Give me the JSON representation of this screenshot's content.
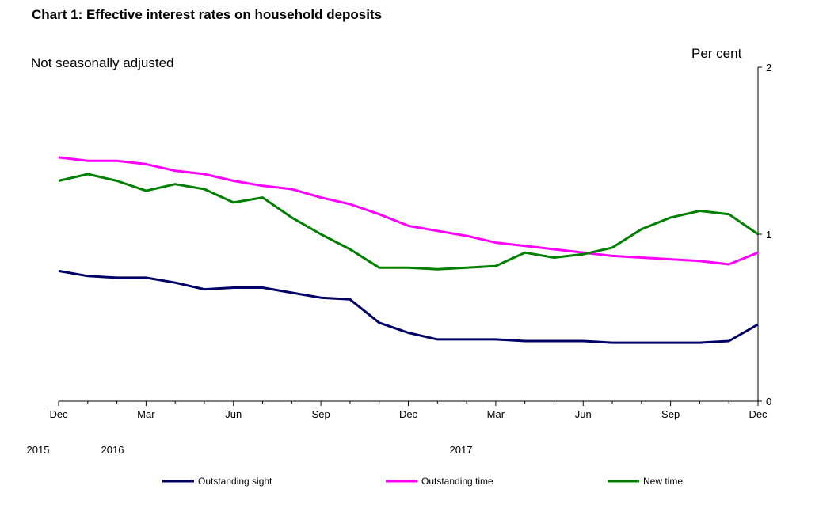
{
  "chart_data": {
    "type": "line",
    "title": "Chart 1: Effective interest rates on household deposits",
    "subtitle": "Not seasonally adjusted",
    "ylabel": "Per cent",
    "ylim": [
      0,
      2
    ],
    "yticks": [
      "0",
      "1",
      "2"
    ],
    "y_axis_side": "right",
    "grid": false,
    "legend_position": "bottom",
    "x": [
      "2015-12",
      "2016-01",
      "2016-02",
      "2016-03",
      "2016-04",
      "2016-05",
      "2016-06",
      "2016-07",
      "2016-08",
      "2016-09",
      "2016-10",
      "2016-11",
      "2016-12",
      "2017-01",
      "2017-02",
      "2017-03",
      "2017-04",
      "2017-05",
      "2017-06",
      "2017-07",
      "2017-08",
      "2017-09",
      "2017-10",
      "2017-11",
      "2017-12"
    ],
    "xtick_labels": [
      "Dec",
      "Mar",
      "Jun",
      "Sep",
      "Dec",
      "Mar",
      "Jun",
      "Sep",
      "Dec"
    ],
    "year_labels": [
      "2015",
      "2016",
      "2017"
    ],
    "series": [
      {
        "name": "Outstanding sight",
        "color": "#000066",
        "values": [
          0.78,
          0.75,
          0.74,
          0.74,
          0.71,
          0.67,
          0.68,
          0.68,
          0.65,
          0.62,
          0.61,
          0.47,
          0.41,
          0.37,
          0.37,
          0.37,
          0.36,
          0.36,
          0.36,
          0.35,
          0.35,
          0.35,
          0.35,
          0.36,
          0.46
        ]
      },
      {
        "name": "Outstanding time",
        "color": "#FF00FF",
        "values": [
          1.46,
          1.44,
          1.44,
          1.42,
          1.38,
          1.36,
          1.32,
          1.29,
          1.27,
          1.22,
          1.18,
          1.12,
          1.05,
          1.02,
          0.99,
          0.95,
          0.93,
          0.91,
          0.89,
          0.87,
          0.86,
          0.85,
          0.84,
          0.82,
          0.89
        ]
      },
      {
        "name": "New time",
        "color": "#008000",
        "values": [
          1.32,
          1.36,
          1.32,
          1.26,
          1.3,
          1.27,
          1.19,
          1.22,
          1.1,
          1.0,
          0.91,
          0.8,
          0.8,
          0.79,
          0.8,
          0.81,
          0.89,
          0.86,
          0.88,
          0.92,
          1.03,
          1.1,
          1.14,
          1.12,
          1.0
        ]
      }
    ]
  }
}
